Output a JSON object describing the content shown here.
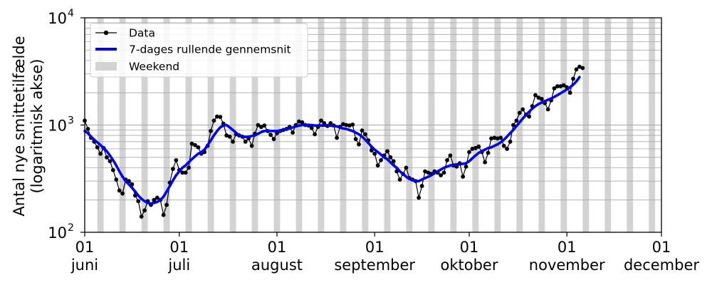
{
  "chart_data": {
    "type": "line",
    "title": "",
    "xlabel": "",
    "ylabel": [
      "Antal nye smittetilfælde",
      "(logaritmisk akse)"
    ],
    "yscale": "log",
    "ylim": [
      100,
      10000
    ],
    "y_ticks": [
      {
        "value": 100,
        "base": "10",
        "exp": "2"
      },
      {
        "value": 1000,
        "base": "10",
        "exp": "3"
      },
      {
        "value": 10000,
        "base": "10",
        "exp": "4"
      }
    ],
    "xlim": [
      "2021-06-01",
      "2021-12-01"
    ],
    "x_ticks": [
      {
        "date": "2021-06-01",
        "day": "01",
        "month": "juni"
      },
      {
        "date": "2021-07-01",
        "day": "01",
        "month": "juli"
      },
      {
        "date": "2021-08-01",
        "day": "01",
        "month": "august"
      },
      {
        "date": "2021-09-01",
        "day": "01",
        "month": "september"
      },
      {
        "date": "2021-10-01",
        "day": "01",
        "month": "oktober"
      },
      {
        "date": "2021-11-01",
        "day": "01",
        "month": "november"
      },
      {
        "date": "2021-12-01",
        "day": "01",
        "month": "december"
      }
    ],
    "grid": "horizontal major and minor lines",
    "weekend_shading": {
      "color": "#d3d3d3",
      "label": "Weekend"
    },
    "legend": {
      "position": "top-left",
      "entries": [
        {
          "label": "Data",
          "color": "#000000",
          "style": "line-with-dots"
        },
        {
          "label": "7-dages rullende gennemsnit",
          "color": "#0000ee",
          "style": "thick-line"
        },
        {
          "label": "Weekend",
          "color": "#d3d3d3",
          "style": "patch"
        }
      ]
    },
    "start_date": "2021-06-01",
    "series": [
      {
        "name": "Data",
        "color": "#000000",
        "values": [
          1100,
          920,
          760,
          700,
          620,
          540,
          610,
          500,
          460,
          380,
          310,
          245,
          230,
          310,
          300,
          280,
          220,
          195,
          140,
          160,
          195,
          180,
          200,
          210,
          200,
          145,
          180,
          290,
          390,
          470,
          380,
          360,
          360,
          400,
          670,
          650,
          620,
          540,
          560,
          640,
          880,
          1100,
          1200,
          1190,
          1030,
          800,
          780,
          700,
          820,
          800,
          780,
          700,
          750,
          640,
          830,
          1000,
          960,
          990,
          880,
          810,
          740,
          840,
          880,
          900,
          920,
          960,
          850,
          1000,
          1080,
          1060,
          1000,
          990,
          940,
          820,
          960,
          1100,
          1040,
          980,
          1040,
          990,
          760,
          960,
          1020,
          1000,
          990,
          1010,
          740,
          660,
          890,
          820,
          720,
          580,
          540,
          420,
          470,
          520,
          570,
          500,
          460,
          370,
          310,
          350,
          400,
          320,
          310,
          300,
          210,
          270,
          370,
          360,
          350,
          370,
          360,
          340,
          360,
          470,
          520,
          420,
          410,
          440,
          330,
          410,
          560,
          600,
          610,
          630,
          560,
          450,
          550,
          750,
          760,
          750,
          760,
          640,
          600,
          700,
          1000,
          1100,
          1300,
          1400,
          1250,
          1200,
          1500,
          1900,
          1800,
          1750,
          1600,
          1400,
          1700,
          2200,
          2300,
          2300,
          2350,
          2250,
          2000,
          2700,
          3300,
          3500,
          3400
        ]
      },
      {
        "name": "7-dages rullende gennemsnit",
        "color": "#0000ee",
        "values": [
          880,
          840,
          780,
          730,
          690,
          650,
          610,
          570,
          520,
          470,
          420,
          370,
          330,
          300,
          280,
          260,
          240,
          220,
          205,
          195,
          188,
          185,
          188,
          192,
          200,
          215,
          240,
          270,
          305,
          340,
          370,
          400,
          420,
          450,
          480,
          510,
          540,
          560,
          590,
          650,
          720,
          800,
          880,
          950,
          990,
          1000,
          950,
          900,
          850,
          800,
          780,
          775,
          780,
          790,
          800,
          830,
          860,
          880,
          890,
          880,
          880,
          880,
          890,
          900,
          910,
          930,
          950,
          970,
          990,
          1000,
          1000,
          1000,
          1000,
          990,
          990,
          990,
          990,
          990,
          990,
          980,
          970,
          950,
          930,
          920,
          900,
          880,
          850,
          820,
          780,
          730,
          680,
          630,
          590,
          560,
          530,
          500,
          480,
          450,
          420,
          400,
          370,
          350,
          330,
          315,
          305,
          300,
          300,
          310,
          320,
          330,
          340,
          355,
          370,
          385,
          400,
          410,
          420,
          425,
          430,
          430,
          435,
          440,
          460,
          490,
          520,
          550,
          570,
          590,
          610,
          620,
          640,
          660,
          690,
          730,
          780,
          840,
          900,
          980,
          1060,
          1150,
          1240,
          1330,
          1420,
          1500,
          1570,
          1620,
          1670,
          1720,
          1770,
          1830,
          1900,
          1980,
          2060,
          2150,
          2250,
          2380,
          2550,
          2800
        ]
      }
    ]
  }
}
